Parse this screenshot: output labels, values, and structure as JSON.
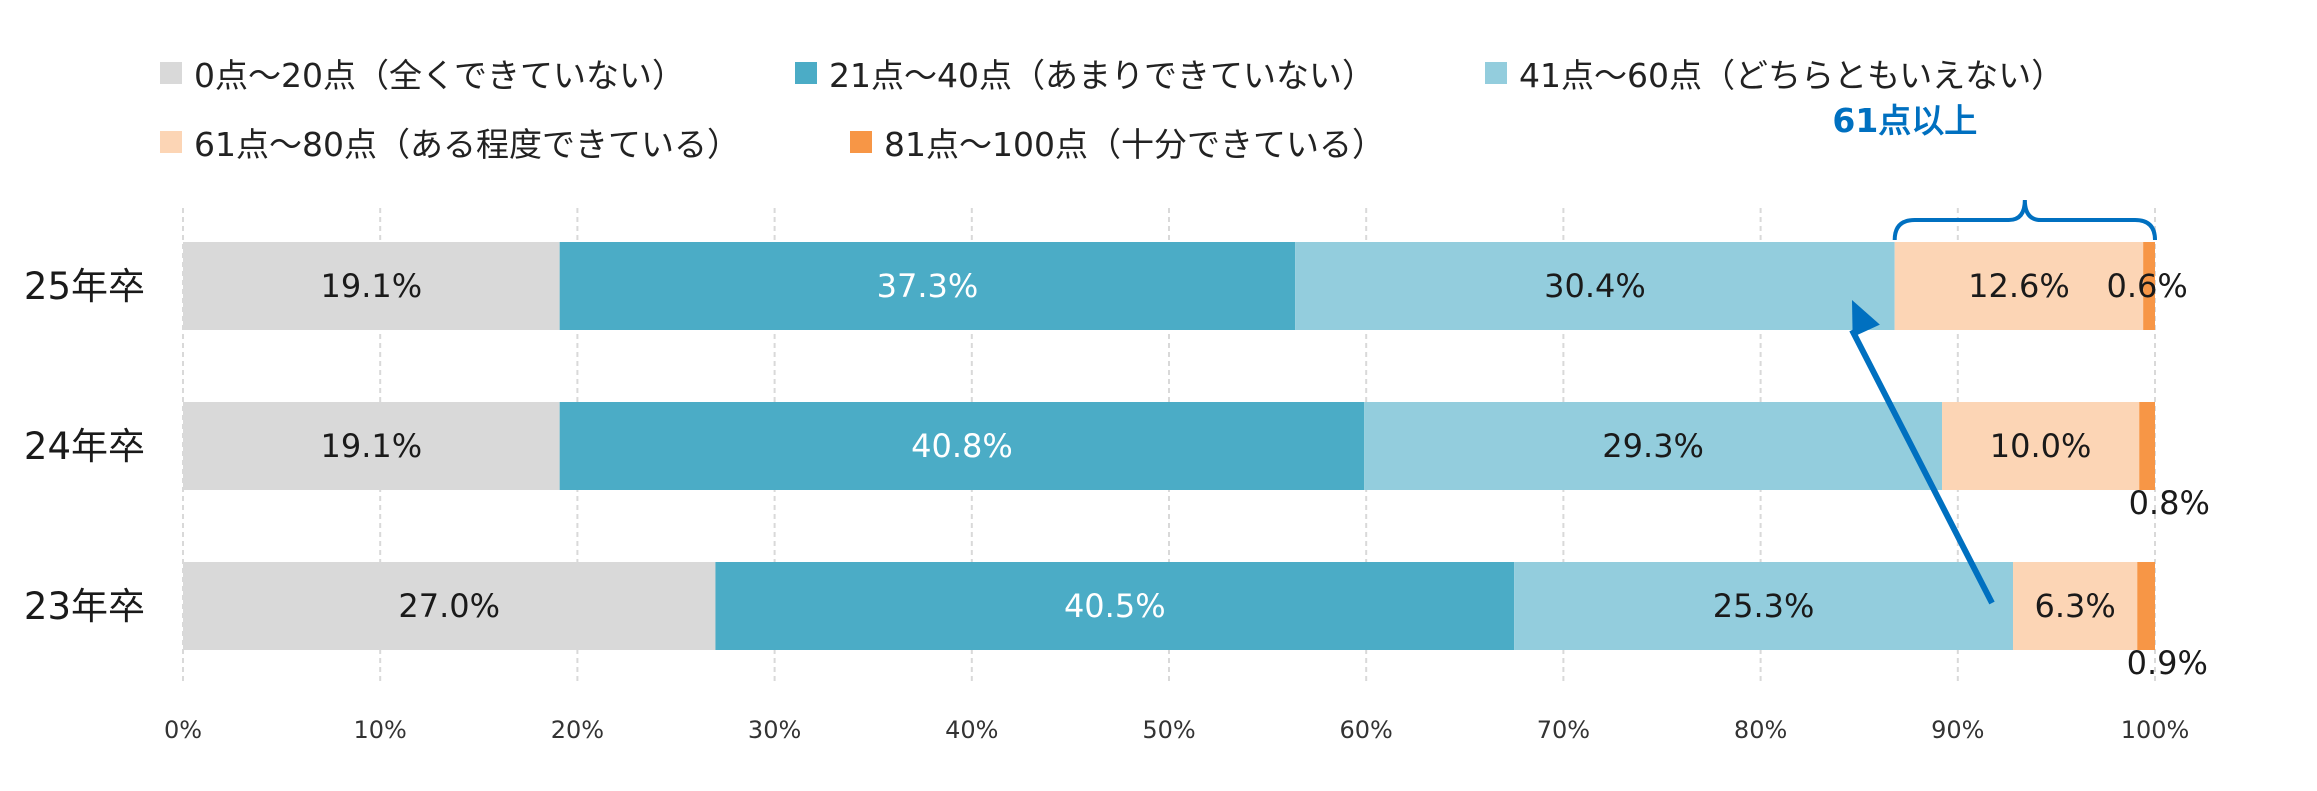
{
  "chart_data": {
    "type": "bar",
    "orientation": "horizontal",
    "stacked": true,
    "categories": [
      "25年卒",
      "24年卒",
      "23年卒"
    ],
    "series": [
      {
        "name": "0点～20点（全くできていない）",
        "color": "#d9d9d9",
        "label_color": "#1a1a1a",
        "values": [
          19.1,
          19.1,
          27.0
        ],
        "labels": [
          "19.1%",
          "19.1%",
          "27.0%"
        ]
      },
      {
        "name": "21点～40点（あまりできていない）",
        "color": "#4bacc6",
        "label_color": "#ffffff",
        "values": [
          37.3,
          40.8,
          40.5
        ],
        "labels": [
          "37.3%",
          "40.8%",
          "40.5%"
        ]
      },
      {
        "name": "41点～60点（どちらともいえない）",
        "color": "#93cddd",
        "label_color": "#1a1a1a",
        "values": [
          30.4,
          29.3,
          25.3
        ],
        "labels": [
          "30.4%",
          "29.3%",
          "25.3%"
        ]
      },
      {
        "name": "61点～80点（ある程度できている）",
        "color": "#fcd5b5",
        "label_color": "#1a1a1a",
        "values": [
          12.6,
          10.0,
          6.3
        ],
        "labels": [
          "12.6%",
          "10.0%",
          "6.3%"
        ]
      },
      {
        "name": "81点～100点（十分できている）",
        "color": "#f79646",
        "label_color": "#1a1a1a",
        "values": [
          0.6,
          0.8,
          0.9
        ],
        "labels": [
          "0.6%",
          "0.8%",
          "0.9%"
        ]
      }
    ],
    "xlim": [
      0,
      100
    ],
    "xticks": [
      "0%",
      "10%",
      "20%",
      "30%",
      "40%",
      "50%",
      "60%",
      "70%",
      "80%",
      "90%",
      "100%"
    ],
    "grid": "vertical",
    "legend_placement": "top",
    "annotation": {
      "text": "61点以上",
      "color": "#0070c0"
    }
  }
}
